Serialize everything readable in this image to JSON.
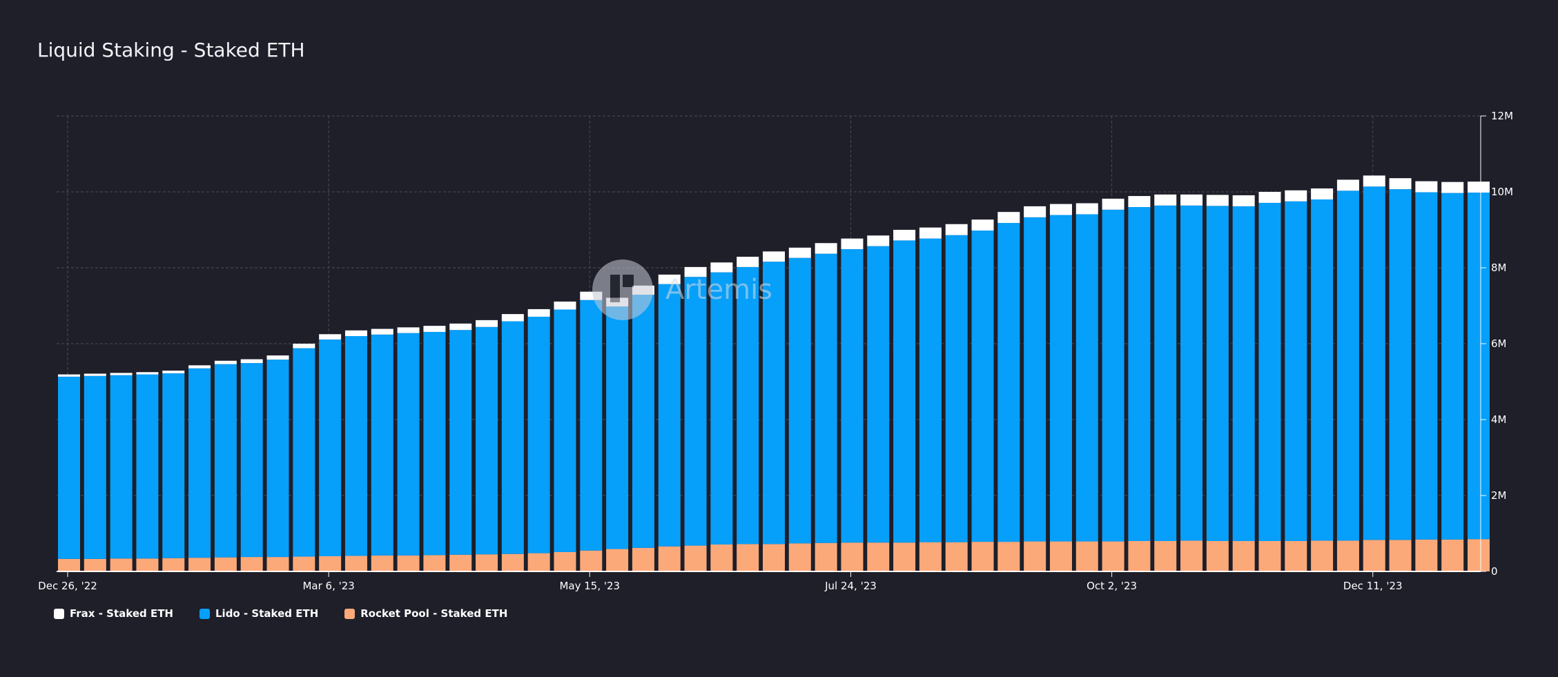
{
  "title": "Liquid Staking - Staked ETH",
  "watermark": "Artemis",
  "colors": {
    "frax": "#ffffff",
    "lido": "#069ffa",
    "rocket": "#fca97a"
  },
  "legend": [
    {
      "label": "Frax - Staked ETH",
      "color": "#ffffff"
    },
    {
      "label": "Lido - Staked ETH",
      "color": "#069ffa"
    },
    {
      "label": "Rocket Pool - Staked ETH",
      "color": "#fca97a"
    }
  ],
  "chart_data": {
    "type": "bar",
    "stacked": true,
    "ylim": [
      0,
      12000000
    ],
    "yticks": [
      {
        "value": 0,
        "label": "0"
      },
      {
        "value": 2000000,
        "label": "2M"
      },
      {
        "value": 4000000,
        "label": "4M"
      },
      {
        "value": 6000000,
        "label": "6M"
      },
      {
        "value": 8000000,
        "label": "8M"
      },
      {
        "value": 10000000,
        "label": "10M"
      },
      {
        "value": 12000000,
        "label": "12M"
      }
    ],
    "xticks": [
      {
        "index": 0,
        "label": "Dec 26, '22"
      },
      {
        "index": 10,
        "label": "Mar 6, '23"
      },
      {
        "index": 20,
        "label": "May 15, '23"
      },
      {
        "index": 30,
        "label": "Jul 24, '23"
      },
      {
        "index": 40,
        "label": "Oct 2, '23"
      },
      {
        "index": 50,
        "label": "Dec 11, '23"
      }
    ],
    "grid": true,
    "legend_position": "bottom-left",
    "series": [
      {
        "name": "Rocket Pool - Staked ETH",
        "values": [
          330000,
          330000,
          340000,
          340000,
          350000,
          360000,
          370000,
          380000,
          380000,
          390000,
          400000,
          410000,
          420000,
          420000,
          430000,
          440000,
          450000,
          460000,
          480000,
          510000,
          550000,
          590000,
          620000,
          660000,
          680000,
          710000,
          720000,
          720000,
          740000,
          750000,
          760000,
          760000,
          760000,
          770000,
          770000,
          780000,
          780000,
          790000,
          790000,
          790000,
          790000,
          800000,
          800000,
          810000,
          800000,
          800000,
          800000,
          800000,
          810000,
          810000,
          830000,
          830000,
          840000,
          840000,
          850000
        ]
      },
      {
        "name": "Lido - Staked ETH",
        "values": [
          4800000,
          4820000,
          4830000,
          4850000,
          4870000,
          4990000,
          5090000,
          5110000,
          5200000,
          5490000,
          5710000,
          5790000,
          5820000,
          5860000,
          5880000,
          5920000,
          5990000,
          6130000,
          6230000,
          6390000,
          6600000,
          6390000,
          6670000,
          6910000,
          7080000,
          7170000,
          7300000,
          7440000,
          7520000,
          7620000,
          7730000,
          7810000,
          7960000,
          8000000,
          8090000,
          8200000,
          8400000,
          8540000,
          8600000,
          8620000,
          8740000,
          8800000,
          8840000,
          8830000,
          8830000,
          8820000,
          8910000,
          8950000,
          8990000,
          9220000,
          9310000,
          9240000,
          9150000,
          9130000,
          9130000
        ]
      },
      {
        "name": "Frax - Staked ETH",
        "values": [
          60000,
          60000,
          60000,
          60000,
          70000,
          80000,
          90000,
          100000,
          110000,
          120000,
          140000,
          150000,
          150000,
          150000,
          160000,
          170000,
          180000,
          190000,
          200000,
          210000,
          220000,
          230000,
          240000,
          250000,
          260000,
          260000,
          270000,
          270000,
          270000,
          280000,
          280000,
          280000,
          280000,
          290000,
          290000,
          290000,
          290000,
          290000,
          290000,
          290000,
          290000,
          290000,
          290000,
          290000,
          290000,
          290000,
          290000,
          290000,
          290000,
          290000,
          290000,
          290000,
          290000,
          290000,
          290000
        ]
      }
    ]
  }
}
